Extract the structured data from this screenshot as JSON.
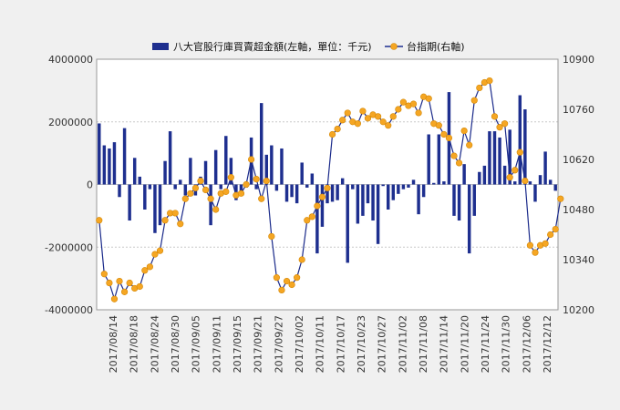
{
  "chart_data": {
    "type": "bar+line",
    "legend": [
      {
        "name": "八大官股行庫買賣超金額(左軸，單位：千元)",
        "kind": "bar",
        "color": "#1e2f8f"
      },
      {
        "name": "台指期(右軸)",
        "kind": "line",
        "color": "#f5a623"
      }
    ],
    "left_axis": {
      "min": -4000000,
      "max": 4000000,
      "ticks": [
        "4000000",
        "2000000",
        "0",
        "-2000000",
        "-4000000"
      ]
    },
    "right_axis": {
      "min": 10200,
      "max": 10900,
      "ticks": [
        "10900",
        "10760",
        "10620",
        "10480",
        "10340",
        "10200"
      ]
    },
    "x_tick_labels": [
      "2017/08/14",
      "2017/08/18",
      "2017/08/24",
      "2017/08/30",
      "2017/09/05",
      "2017/09/11",
      "2017/09/15",
      "2017/09/21",
      "2017/09/27",
      "2017/10/02",
      "2017/10/11",
      "2017/10/17",
      "2017/10/23",
      "2017/10/27",
      "2017/11/02",
      "2017/11/08",
      "2017/11/14",
      "2017/11/20",
      "2017/11/24",
      "2017/11/30",
      "2017/12/06",
      "2017/12/12"
    ],
    "series": [
      {
        "name": "八大官股行庫買賣超金額(左軸，單位：千元)",
        "axis": "left",
        "values": [
          1950000,
          1250000,
          1150000,
          1350000,
          -400000,
          1800000,
          -1150000,
          850000,
          250000,
          -800000,
          -150000,
          -1550000,
          -1300000,
          750000,
          1700000,
          -150000,
          150000,
          -350000,
          850000,
          -350000,
          250000,
          750000,
          -1300000,
          1100000,
          -150000,
          1550000,
          850000,
          -500000,
          -200000,
          -100000,
          1500000,
          -150000,
          2600000,
          950000,
          1250000,
          -200000,
          1150000,
          -550000,
          -400000,
          -600000,
          700000,
          -100000,
          350000,
          -2200000,
          -1350000,
          -600000,
          -550000,
          -500000,
          200000,
          -2500000,
          -150000,
          -1250000,
          -1000000,
          -600000,
          -1150000,
          -1900000,
          -50000,
          -800000,
          -500000,
          -300000,
          -150000,
          -100000,
          150000,
          -950000,
          -400000,
          1600000,
          50000,
          1600000,
          100000,
          2950000,
          -1000000,
          -1150000,
          650000,
          -2200000,
          -1000000,
          400000,
          600000,
          1700000,
          1700000,
          1500000,
          600000,
          1750000,
          100000,
          2850000,
          2400000,
          100000,
          -550000,
          300000,
          1050000,
          150000,
          -200000
        ]
      },
      {
        "name": "台指期(右軸)",
        "axis": "right",
        "values": [
          10450,
          10300,
          10275,
          10230,
          10280,
          10250,
          10275,
          10260,
          10265,
          10310,
          10320,
          10355,
          10365,
          10450,
          10470,
          10470,
          10440,
          10510,
          10525,
          10540,
          10560,
          10535,
          10510,
          10480,
          10525,
          10530,
          10570,
          10520,
          10525,
          10550,
          10620,
          10565,
          10510,
          10560,
          10405,
          10290,
          10255,
          10280,
          10270,
          10290,
          10340,
          10450,
          10460,
          10490,
          10515,
          10540,
          10690,
          10705,
          10730,
          10750,
          10725,
          10720,
          10755,
          10735,
          10745,
          10740,
          10725,
          10715,
          10740,
          10760,
          10780,
          10770,
          10775,
          10750,
          10795,
          10790,
          10720,
          10715,
          10690,
          10680,
          10630,
          10610,
          10700,
          10660,
          10785,
          10820,
          10835,
          10840,
          10740,
          10710,
          10720,
          10570,
          10590,
          10640,
          10560,
          10380,
          10360,
          10380,
          10385,
          10410,
          10425,
          10510
        ]
      }
    ]
  }
}
